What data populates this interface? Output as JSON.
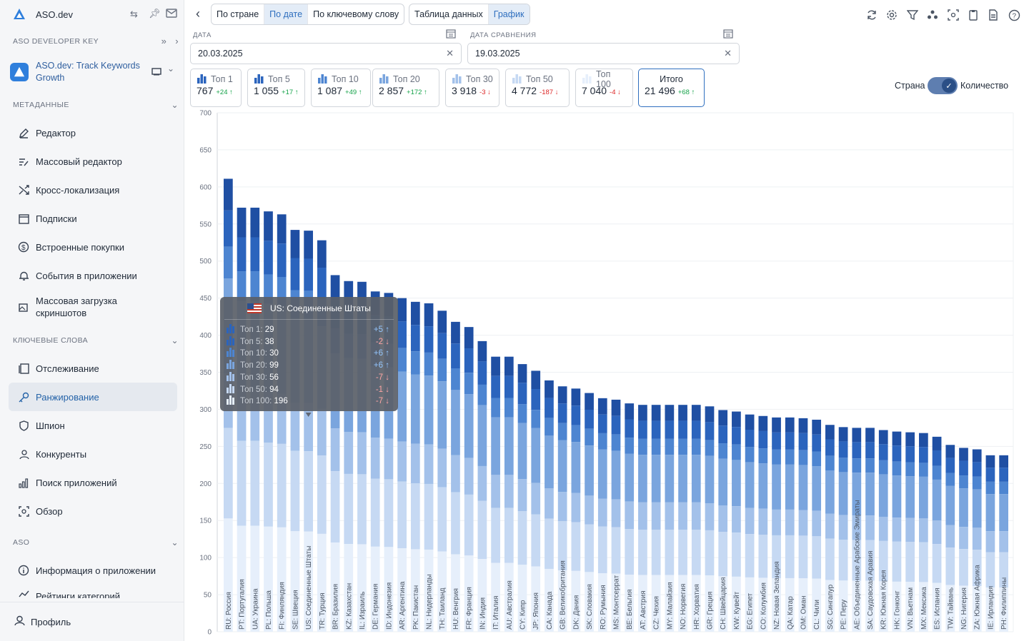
{
  "app": {
    "name": "ASO.dev",
    "dev_key_label": "ASO DEVELOPER KEY",
    "app_name": "ASO.dev: Track Keywords Growth"
  },
  "sidebar": {
    "sections": [
      {
        "label": "МЕТАДАННЫЕ"
      },
      {
        "label": "КЛЮЧЕВЫЕ СЛОВА"
      },
      {
        "label": "ASO"
      }
    ],
    "items": [
      {
        "label": "Редактор",
        "icon": "pencil-icon"
      },
      {
        "label": "Массовый редактор",
        "icon": "list-edit-icon"
      },
      {
        "label": "Кросс-локализация",
        "icon": "shuffle-icon"
      },
      {
        "label": "Подписки",
        "icon": "calendar-dollar-icon"
      },
      {
        "label": "Встроенные покупки",
        "icon": "dollar-circle-icon"
      },
      {
        "label": "События в приложении",
        "icon": "bell-icon"
      },
      {
        "label": "Массовая загрузка скриншотов",
        "icon": "image-upload-icon"
      },
      {
        "label": "Отслеживание",
        "icon": "copy-icon"
      },
      {
        "label": "Ранжирование",
        "icon": "key-icon"
      },
      {
        "label": "Шпион",
        "icon": "shield-icon"
      },
      {
        "label": "Конкуренты",
        "icon": "people-icon"
      },
      {
        "label": "Поиск приложений",
        "icon": "bars-icon"
      },
      {
        "label": "Обзор",
        "icon": "scan-icon"
      },
      {
        "label": "Информация о приложении",
        "icon": "info-icon"
      },
      {
        "label": "Рейтинги категорий",
        "icon": "trend-icon"
      }
    ],
    "profile": "Профиль"
  },
  "toolbar": {
    "view_tabs": [
      "По стране",
      "По дате",
      "По ключевому слову"
    ],
    "mode_tabs": [
      "Таблица данных",
      "График"
    ]
  },
  "dates": {
    "date_label": "ДАТА",
    "date_value": "20.03.2025",
    "compare_label": "ДАТА СРАВНЕНИЯ",
    "compare_value": "19.03.2025"
  },
  "cards": [
    {
      "label": "Топ 1",
      "value": "767",
      "delta": "+24",
      "dir": "up"
    },
    {
      "label": "Топ 5",
      "value": "1 055",
      "delta": "+17",
      "dir": "up"
    },
    {
      "label": "Топ 10",
      "value": "1 087",
      "delta": "+49",
      "dir": "up"
    },
    {
      "label": "Топ 20",
      "value": "2 857",
      "delta": "+172",
      "dir": "up"
    },
    {
      "label": "Топ 30",
      "value": "3 918",
      "delta": "-3",
      "dir": "down"
    },
    {
      "label": "Топ 50",
      "value": "4 772",
      "delta": "-187",
      "dir": "down"
    },
    {
      "label": "Топ 100",
      "value": "7 040",
      "delta": "-4",
      "dir": "down"
    },
    {
      "label": "Итого",
      "value": "21 496",
      "delta": "+68",
      "dir": "up"
    }
  ],
  "toggle": {
    "left": "Страна",
    "right": "Количество"
  },
  "tooltip": {
    "title": "US: Соединенные Штаты",
    "rows": [
      {
        "label": "Топ 1:",
        "value": "29",
        "delta": "+5",
        "dir": "up"
      },
      {
        "label": "Топ 5:",
        "value": "38",
        "delta": "-2",
        "dir": "down"
      },
      {
        "label": "Топ 10:",
        "value": "30",
        "delta": "+6",
        "dir": "up"
      },
      {
        "label": "Топ 20:",
        "value": "99",
        "delta": "+6",
        "dir": "up"
      },
      {
        "label": "Топ 30:",
        "value": "56",
        "delta": "-7",
        "dir": "down"
      },
      {
        "label": "Топ 50:",
        "value": "94",
        "delta": "-1",
        "dir": "down"
      },
      {
        "label": "Топ 100:",
        "value": "196",
        "delta": "-7",
        "dir": "down"
      }
    ]
  },
  "colors": {
    "s1": "#1f4fa3",
    "s2": "#2b64bd",
    "s3": "#4d85d1",
    "s4": "#7aa5de",
    "s5": "#a3c1ea",
    "s6": "#c6d9f3",
    "s7": "#e6effb",
    "accent": "#2f6fbf"
  },
  "chart_data": {
    "type": "bar",
    "stacked": true,
    "ylim": [
      0,
      700
    ],
    "yticks": [
      0,
      50,
      100,
      150,
      200,
      250,
      300,
      350,
      400,
      450,
      500,
      550,
      600,
      650,
      700
    ],
    "series_names": [
      "Топ 1",
      "Топ 5",
      "Топ 10",
      "Топ 20",
      "Топ 30",
      "Топ 50",
      "Топ 100"
    ],
    "categories": [
      "RU: Россия",
      "PT: Португалия",
      "UA: Украина",
      "PL: Польша",
      "FI: Финляндия",
      "SE: Швеция",
      "US: Соединенные Штаты",
      "TR: Турция",
      "BR: Бразилия",
      "KZ: Казахстан",
      "IL: Израиль",
      "DE: Германия",
      "ID: Индонезия",
      "AR: Аргентина",
      "PK: Пакистан",
      "NL: Нидерланды",
      "TH: Таиланд",
      "HU: Венгрия",
      "FR: Франция",
      "IN: Индия",
      "IT: Италия",
      "AU: Австралия",
      "CY: Кипр",
      "JP: Япония",
      "CA: Канада",
      "GB: Великобритания",
      "DK: Дания",
      "SK: Словакия",
      "RO: Румыния",
      "MS: Монтсеррат",
      "BE: Бельгия",
      "AT: Австрия",
      "CZ: Чехия",
      "MY: Малайзия",
      "NO: Норвегия",
      "HR: Хорватия",
      "GR: Греция",
      "CH: Швейцария",
      "KW: Кувейт",
      "EG: Египет",
      "CO: Колумбия",
      "NZ: Новая Зеландия",
      "QA: Катар",
      "OM: Оман",
      "CL: Чили",
      "SG: Сингапур",
      "PE: Перу",
      "AE: Объединенные Арабские Эмираты",
      "SA: Саудовская Аравия",
      "KR: Южная Корея",
      "HK: Гонконг",
      "VN: Вьетнам",
      "MX: Мексика",
      "ES: Испания",
      "TW: Тайвань",
      "NG: Нигерия",
      "ZA: Южная Африка",
      "IE: Ирландия",
      "PH: Филиппины"
    ],
    "totals": [
      611,
      572,
      572,
      567,
      563,
      542,
      541,
      528,
      481,
      473,
      472,
      459,
      457,
      450,
      445,
      443,
      433,
      418,
      411,
      392,
      371,
      371,
      361,
      352,
      339,
      331,
      328,
      322,
      315,
      313,
      308,
      306,
      306,
      306,
      306,
      306,
      304,
      299,
      297,
      293,
      291,
      289,
      289,
      288,
      286,
      279,
      276,
      275,
      275,
      272,
      270,
      269,
      268,
      263,
      252,
      248,
      246,
      238,
      238
    ],
    "series_fractions": [
      0.07,
      0.08,
      0.07,
      0.21,
      0.12,
      0.2,
      0.25
    ]
  }
}
